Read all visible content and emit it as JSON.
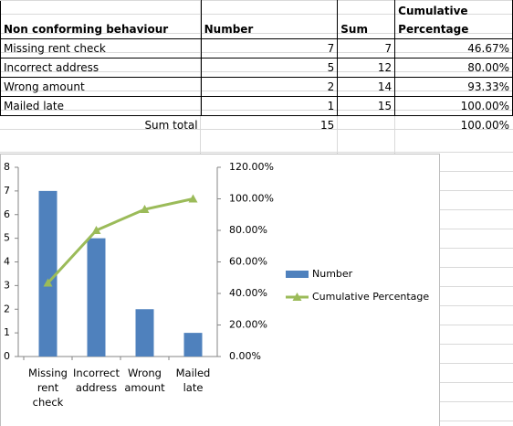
{
  "table": {
    "header": [
      "Non conforming behaviour",
      "Number",
      "Sum",
      "Cumulative Percentage"
    ],
    "rows": [
      [
        "Missing rent check",
        7,
        7,
        "46.67%"
      ],
      [
        "Incorrect address",
        5,
        12,
        "80.00%"
      ],
      [
        "Wrong amount",
        2,
        14,
        "93.33%"
      ],
      [
        "Mailed late",
        1,
        15,
        "100.00%"
      ]
    ],
    "total": {
      "label": "Sum total",
      "number": 15,
      "percentage": "100.00%"
    }
  },
  "chart_data": {
    "type": "combo",
    "categories": [
      "Missing rent check",
      "Incorrect address",
      "Wrong amount",
      "Mailed late"
    ],
    "series": [
      {
        "name": "Number",
        "type": "bar",
        "color": "#4f81bd",
        "values": [
          7,
          5,
          2,
          1
        ]
      },
      {
        "name": "Cumulative Percentage",
        "type": "line",
        "axis": "y2",
        "color": "#9bbb59",
        "values": [
          46.67,
          80,
          93.33,
          100
        ]
      }
    ],
    "ylim": [
      0,
      8
    ],
    "yticks": [
      0,
      1,
      2,
      3,
      4,
      5,
      6,
      7,
      8
    ],
    "y2lim": [
      0,
      120
    ],
    "y2ticks": [
      {
        "value": 0,
        "label": "0.00%"
      },
      {
        "value": 20,
        "label": "20.00%"
      },
      {
        "value": 40,
        "label": "40.00%"
      },
      {
        "value": 60,
        "label": "60.00%"
      },
      {
        "value": 80,
        "label": "80.00%"
      },
      {
        "value": 100,
        "label": "100.00%"
      },
      {
        "value": 120,
        "label": "120.00%"
      }
    ]
  }
}
